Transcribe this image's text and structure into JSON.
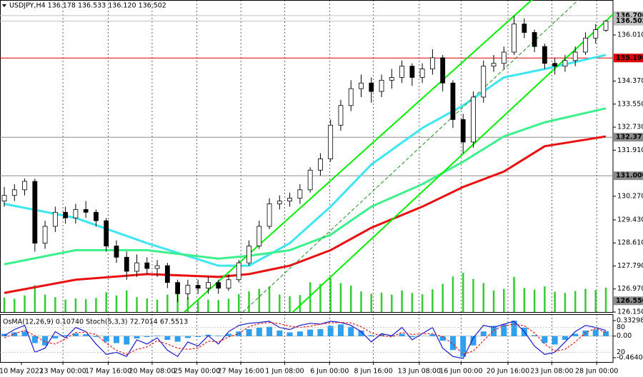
{
  "chart_data": {
    "type": "candlestick",
    "header": "USDJPY,H4  136.178 136.533 136.120 136.502",
    "xlim": [
      -0.42,
      59.7
    ],
    "ylim": [
      126.15,
      137.255
    ],
    "xticks": [
      {
        "value": 1.68,
        "label": "10 May 2022"
      },
      {
        "value": 5.75,
        "label": "13 May 00:00"
      },
      {
        "value": 10.2,
        "label": "17 May 16:00"
      },
      {
        "value": 14.5,
        "label": "20 May 08:00"
      },
      {
        "value": 18.9,
        "label": "25 May 00:00"
      },
      {
        "value": 23.2,
        "label": "27 May 16:00"
      },
      {
        "value": 27.5,
        "label": "1 Jun 08:00"
      },
      {
        "value": 31.9,
        "label": "6 Jun 00:00"
      },
      {
        "value": 36.2,
        "label": "8 Jun 16:00"
      },
      {
        "value": 40.7,
        "label": "13 Jun 08:00"
      },
      {
        "value": 44.8,
        "label": "16 Jun 00:00"
      },
      {
        "value": 49.4,
        "label": "20 Jun 16:00"
      },
      {
        "value": 53.7,
        "label": "23 Jun 08:00"
      },
      {
        "value": 58.1,
        "label": "28 Jun 00:00"
      }
    ],
    "yticks": [
      {
        "value": 136.01,
        "label": "136.010"
      },
      {
        "value": 134.37,
        "label": "134.370"
      },
      {
        "value": 133.55,
        "label": "133.550"
      },
      {
        "value": 132.73,
        "label": "132.730"
      },
      {
        "value": 131.91,
        "label": "131.910"
      },
      {
        "value": 130.27,
        "label": "130.270"
      },
      {
        "value": 129.43,
        "label": "129.430"
      },
      {
        "value": 128.61,
        "label": "128.610"
      },
      {
        "value": 127.79,
        "label": "127.790"
      },
      {
        "value": 126.97,
        "label": "126.970"
      },
      {
        "value": 126.15,
        "label": "126.150"
      }
    ],
    "levels": [
      {
        "value": 136.7,
        "label": "136.700",
        "color": "#c0c0c0",
        "text_color": "#000000",
        "line": true
      },
      {
        "value": 136.502,
        "label": "136.502",
        "color": "#c0c0c0",
        "text_color": "#000000",
        "line": true
      },
      {
        "value": 135.19,
        "label": "135.190",
        "color": "#e00000",
        "text_color": "#ffffff",
        "line": true
      },
      {
        "value": 132.371,
        "label": "132.371",
        "color": "#8c8c8c",
        "text_color": "#ffffff",
        "line": true
      },
      {
        "value": 131.0,
        "label": "131.000",
        "color": "#8c8c8c",
        "text_color": "#ffffff",
        "line": true
      },
      {
        "value": 126.55,
        "label": "126.550",
        "color": "#8c8c8c",
        "text_color": "#ffffff",
        "line": false
      }
    ],
    "candles": [
      [
        130.1,
        130.6,
        129.9,
        130.3
      ],
      [
        130.3,
        130.7,
        130.1,
        130.5
      ],
      [
        130.5,
        130.9,
        130.3,
        130.8
      ],
      [
        130.8,
        130.9,
        128.3,
        128.6
      ],
      [
        128.6,
        129.4,
        128.4,
        129.2
      ],
      [
        129.2,
        129.9,
        129.0,
        129.7
      ],
      [
        129.7,
        129.9,
        129.3,
        129.5
      ],
      [
        129.5,
        130.0,
        129.3,
        129.8
      ],
      [
        129.8,
        130.1,
        129.5,
        129.7
      ],
      [
        129.7,
        129.8,
        129.2,
        129.4
      ],
      [
        129.4,
        129.5,
        128.3,
        128.5
      ],
      [
        128.5,
        128.7,
        127.9,
        128.1
      ],
      [
        128.1,
        128.3,
        127.3,
        127.6
      ],
      [
        127.6,
        128.2,
        127.4,
        127.9
      ],
      [
        127.9,
        128.1,
        127.5,
        127.7
      ],
      [
        127.7,
        128.0,
        127.4,
        127.8
      ],
      [
        127.8,
        127.9,
        127.0,
        127.2
      ],
      [
        127.2,
        127.3,
        126.5,
        126.8
      ],
      [
        126.8,
        127.3,
        126.6,
        127.1
      ],
      [
        127.1,
        127.3,
        126.8,
        127.0
      ],
      [
        127.0,
        127.4,
        126.8,
        127.2
      ],
      [
        127.2,
        127.3,
        126.8,
        127.0
      ],
      [
        127.0,
        127.5,
        126.9,
        127.3
      ],
      [
        127.3,
        128.0,
        127.2,
        127.9
      ],
      [
        127.9,
        128.7,
        127.8,
        128.5
      ],
      [
        128.5,
        129.4,
        128.4,
        129.2
      ],
      [
        129.2,
        130.2,
        129.1,
        130.0
      ],
      [
        130.0,
        130.3,
        129.8,
        130.1
      ],
      [
        130.1,
        130.4,
        129.9,
        130.2
      ],
      [
        130.2,
        130.7,
        130.0,
        130.5
      ],
      [
        130.5,
        131.3,
        130.4,
        131.2
      ],
      [
        131.2,
        131.8,
        131.0,
        131.6
      ],
      [
        131.6,
        133.0,
        131.5,
        132.8
      ],
      [
        132.8,
        133.7,
        132.6,
        133.5
      ],
      [
        133.5,
        134.4,
        133.3,
        134.1
      ],
      [
        134.1,
        134.6,
        133.8,
        134.3
      ],
      [
        134.3,
        134.5,
        133.6,
        134.0
      ],
      [
        134.0,
        134.6,
        133.8,
        134.4
      ],
      [
        134.4,
        134.8,
        134.1,
        134.5
      ],
      [
        134.5,
        135.1,
        134.3,
        134.9
      ],
      [
        134.9,
        135.0,
        134.2,
        134.5
      ],
      [
        134.5,
        135.0,
        134.3,
        134.8
      ],
      [
        134.8,
        135.5,
        134.6,
        135.2
      ],
      [
        135.2,
        135.3,
        134.0,
        134.3
      ],
      [
        134.3,
        134.4,
        132.7,
        133.0
      ],
      [
        133.0,
        133.2,
        131.8,
        132.2
      ],
      [
        132.2,
        134.0,
        132.0,
        133.8
      ],
      [
        133.8,
        135.1,
        133.6,
        134.9
      ],
      [
        134.9,
        135.3,
        134.7,
        135.0
      ],
      [
        135.0,
        135.6,
        134.8,
        135.4
      ],
      [
        135.4,
        136.7,
        135.3,
        136.4
      ],
      [
        136.4,
        136.6,
        135.9,
        136.1
      ],
      [
        136.1,
        136.2,
        135.4,
        135.6
      ],
      [
        135.6,
        135.7,
        134.8,
        135.0
      ],
      [
        135.0,
        135.2,
        134.6,
        134.9
      ],
      [
        134.9,
        135.3,
        134.7,
        135.1
      ],
      [
        135.1,
        135.6,
        134.9,
        135.4
      ],
      [
        135.4,
        136.1,
        135.3,
        135.9
      ],
      [
        135.9,
        136.4,
        135.7,
        136.2
      ],
      [
        136.178,
        136.533,
        136.12,
        136.502
      ]
    ],
    "volumes": [
      3500,
      3200,
      4000,
      6500,
      4200,
      3600,
      3000,
      3300,
      3100,
      3400,
      4800,
      4000,
      5200,
      3600,
      3300,
      3000,
      4200,
      4600,
      3500,
      3100,
      3000,
      2900,
      3200,
      4300,
      5000,
      5600,
      6200,
      4200,
      3800,
      4100,
      7200,
      6800,
      8200,
      7000,
      6400,
      5000,
      4400,
      4700,
      4200,
      5200,
      4600,
      4300,
      5500,
      6800,
      8600,
      9500,
      8000,
      7000,
      5200,
      5600,
      8500,
      5800,
      5400,
      6200,
      4900,
      4600,
      5100,
      5600,
      5300,
      5900
    ],
    "moving_averages": [
      {
        "color": "#3ee6f2",
        "x": [
          0,
          7,
          14,
          21,
          24,
          28,
          32,
          36,
          41,
          45,
          49,
          53,
          59
        ],
        "values": [
          130.0,
          129.5,
          128.6,
          127.8,
          127.8,
          128.6,
          129.9,
          131.4,
          132.7,
          133.5,
          134.5,
          134.8,
          135.3
        ]
      },
      {
        "color": "#3ef08c",
        "x": [
          0,
          7,
          14,
          21,
          24,
          28,
          32,
          36,
          41,
          45,
          49,
          53,
          59
        ],
        "values": [
          127.85,
          128.35,
          128.35,
          128.05,
          128.15,
          128.35,
          128.9,
          129.9,
          130.7,
          131.5,
          132.4,
          132.9,
          133.4
        ]
      },
      {
        "color": "#e81010",
        "x": [
          0,
          7,
          14,
          21,
          24,
          28,
          32,
          36,
          41,
          45,
          49,
          53,
          59
        ],
        "values": [
          126.83,
          127.3,
          127.5,
          127.4,
          127.5,
          127.8,
          128.35,
          129.15,
          129.9,
          130.6,
          131.15,
          132.05,
          132.4
        ]
      }
    ],
    "trendlines": [
      {
        "color": "#00ee00",
        "dashed": false,
        "points": [
          [
            17.66,
            126.15
          ],
          [
            50.03,
            136.7
          ]
        ]
      },
      {
        "color": "#00ee00",
        "dashed": false,
        "points": [
          [
            28.3,
            126.15
          ],
          [
            59.1,
            136.54
          ]
        ]
      },
      {
        "color": "#228b22",
        "dashed": true,
        "points": [
          [
            23.4,
            126.15
          ],
          [
            56.3,
            137.255
          ]
        ]
      }
    ],
    "indicator": {
      "label": "OsMA(12,26,9) 0.10740  Stoch(5,3,3) 72.7014 67.5513",
      "osma_ylim": [
        -0.46404,
        0.33298
      ],
      "osma_yticks": [
        0.33298,
        {
          "value": 0,
          "label": "0.00"
        },
        -0.46404
      ],
      "osma_color": "#2f9ff0",
      "osma": [
        0.05,
        0.08,
        0.1,
        -0.15,
        -0.2,
        -0.05,
        0.02,
        0.06,
        0.04,
        -0.02,
        -0.12,
        -0.15,
        -0.18,
        -0.05,
        -0.02,
        0.01,
        -0.08,
        -0.12,
        -0.04,
        -0.02,
        0.03,
        0.01,
        0.05,
        0.1,
        0.15,
        0.18,
        0.2,
        0.12,
        0.08,
        0.1,
        0.14,
        0.15,
        0.22,
        0.25,
        0.2,
        0.12,
        0.02,
        0.04,
        0.02,
        0.05,
        -0.02,
        0,
        0.04,
        -0.1,
        -0.3,
        -0.44,
        -0.2,
        0.1,
        0.22,
        0.25,
        0.33,
        0.18,
        0.02,
        -0.15,
        -0.18,
        -0.08,
        0.05,
        0.12,
        0.14,
        0.1074
      ],
      "stoch_ylim": [
        0,
        100
      ],
      "stoch_yticks": [
        80,
        20
      ],
      "stoch_main_color": "#1a1acc",
      "stoch_signal_color": "#e02020",
      "stoch_main": [
        60,
        75,
        85,
        20,
        30,
        70,
        55,
        80,
        70,
        40,
        15,
        20,
        10,
        50,
        40,
        55,
        25,
        10,
        45,
        35,
        60,
        40,
        70,
        85,
        90,
        92,
        95,
        80,
        75,
        85,
        90,
        88,
        95,
        92,
        85,
        70,
        45,
        65,
        60,
        80,
        50,
        65,
        80,
        30,
        10,
        5,
        55,
        85,
        80,
        88,
        95,
        70,
        35,
        15,
        20,
        45,
        70,
        85,
        80,
        72.7014
      ],
      "stoch_signal": [
        55,
        65,
        73,
        60,
        45,
        40,
        52,
        68,
        68,
        63,
        42,
        25,
        15,
        27,
        33,
        48,
        40,
        30,
        27,
        30,
        47,
        45,
        57,
        65,
        82,
        89,
        92,
        89,
        83,
        80,
        83,
        88,
        91,
        92,
        91,
        82,
        67,
        60,
        57,
        68,
        63,
        65,
        65,
        58,
        40,
        15,
        23,
        48,
        73,
        84,
        88,
        84,
        67,
        40,
        23,
        27,
        45,
        67,
        78,
        67.5513
      ]
    }
  }
}
